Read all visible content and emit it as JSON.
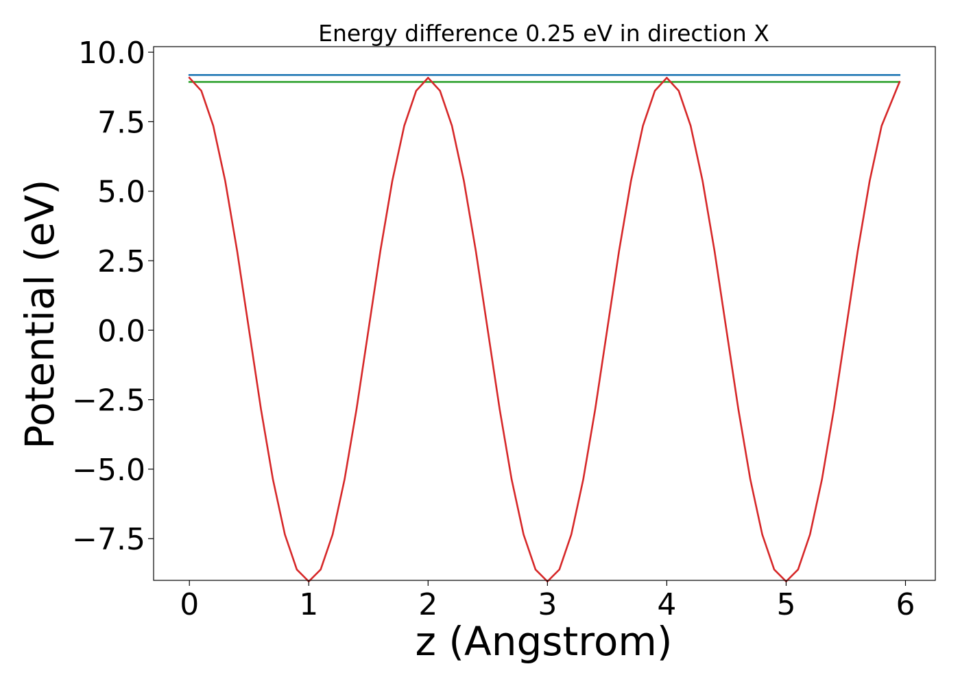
{
  "chart_data": {
    "type": "line",
    "title": "Energy difference 0.25 eV in direction X",
    "xlabel": "z (Angstrom)",
    "ylabel": "Potential (eV)",
    "xlim": [
      -0.3,
      6.25
    ],
    "ylim": [
      -9.0,
      10.2
    ],
    "x_ticks": [
      0,
      1,
      2,
      3,
      4,
      5,
      6
    ],
    "x_tick_labels": [
      "0",
      "1",
      "2",
      "3",
      "4",
      "5",
      "6"
    ],
    "y_ticks": [
      10.0,
      7.5,
      5.0,
      2.5,
      0.0,
      -2.5,
      -5.0,
      -7.5
    ],
    "y_tick_labels": [
      "10.0",
      "7.5",
      "5.0",
      "2.5",
      "0.0",
      "−2.5",
      "−5.0",
      "−7.5"
    ],
    "grid": false,
    "legend": "none",
    "series": [
      {
        "color": "#1f77b4",
        "x": [
          0.0,
          5.95
        ],
        "y": [
          9.18,
          9.18
        ]
      },
      {
        "color": "#2ca02c",
        "x": [
          0.0,
          5.95
        ],
        "y": [
          8.93,
          8.93
        ]
      },
      {
        "color": "#d62728",
        "x": [
          0.0,
          0.1,
          0.2,
          0.3,
          0.4,
          0.5,
          0.6,
          0.7,
          0.8,
          0.9,
          1.0,
          1.1,
          1.2,
          1.3,
          1.4,
          1.5,
          1.6,
          1.7,
          1.8,
          1.9,
          2.0,
          2.1,
          2.2,
          2.3,
          2.4,
          2.5,
          2.6,
          2.7,
          2.8,
          2.9,
          3.0,
          3.1,
          3.2,
          3.3,
          3.4,
          3.5,
          3.6,
          3.7,
          3.8,
          3.9,
          4.0,
          4.1,
          4.2,
          4.3,
          4.4,
          4.5,
          4.6,
          4.7,
          4.8,
          4.9,
          5.0,
          5.1,
          5.2,
          5.3,
          5.4,
          5.5,
          5.6,
          5.7,
          5.8,
          5.95
        ],
        "y": [
          9.08,
          8.61,
          7.35,
          5.37,
          2.85,
          0.0,
          -2.85,
          -5.37,
          -7.35,
          -8.61,
          -9.04,
          -8.61,
          -7.35,
          -5.37,
          -2.85,
          0.0,
          2.85,
          5.37,
          7.35,
          8.61,
          9.08,
          8.61,
          7.35,
          5.37,
          2.85,
          0.0,
          -2.85,
          -5.37,
          -7.35,
          -8.61,
          -9.04,
          -8.61,
          -7.35,
          -5.37,
          -2.85,
          0.0,
          2.85,
          5.37,
          7.35,
          8.61,
          9.08,
          8.61,
          7.35,
          5.37,
          2.85,
          0.0,
          -2.85,
          -5.37,
          -7.35,
          -8.61,
          -9.04,
          -8.61,
          -7.35,
          -5.37,
          -2.85,
          0.0,
          2.85,
          5.37,
          7.35,
          8.93
        ]
      }
    ]
  }
}
